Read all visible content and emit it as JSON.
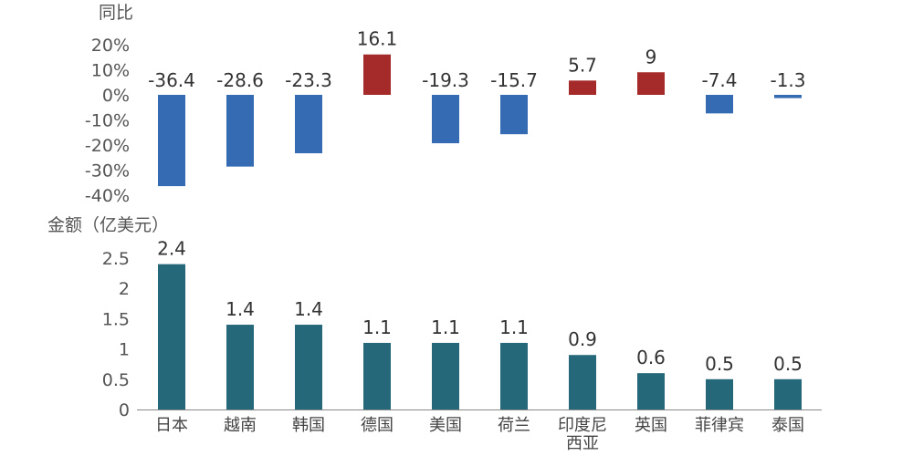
{
  "chart_data": [
    {
      "type": "bar",
      "ylabel": "同比",
      "categories": [
        "日本",
        "越南",
        "韩国",
        "德国",
        "美国",
        "荷兰",
        "印度尼西亚",
        "英国",
        "菲律宾",
        "泰国"
      ],
      "values": [
        -36.4,
        -28.6,
        -23.3,
        16.1,
        -19.3,
        -15.7,
        5.7,
        9,
        -7.4,
        -1.3
      ],
      "data_labels": [
        "-36.4",
        "-28.6",
        "-23.3",
        "16.1",
        "-19.3",
        "-15.7",
        "5.7",
        "9",
        "-7.4",
        "-1.3"
      ],
      "yticks": [
        "20%",
        "10%",
        "0%",
        "-10%",
        "-20%",
        "-30%",
        "-40%"
      ],
      "ytick_values": [
        20,
        10,
        0,
        -10,
        -20,
        -30,
        -40
      ],
      "ylim": [
        -40,
        20
      ],
      "grid": false,
      "colors": {
        "positive": "#A52A2A",
        "negative": "#356BB2"
      }
    },
    {
      "type": "bar",
      "ylabel": "金额（亿美元）",
      "categories": [
        "日本",
        "越南",
        "韩国",
        "德国",
        "美国",
        "荷兰",
        "印度尼西亚",
        "英国",
        "菲律宾",
        "泰国"
      ],
      "category_lines": [
        [
          "日本"
        ],
        [
          "越南"
        ],
        [
          "韩国"
        ],
        [
          "德国"
        ],
        [
          "美国"
        ],
        [
          "荷兰"
        ],
        [
          "印度尼",
          "西亚"
        ],
        [
          "英国"
        ],
        [
          "菲律宾"
        ],
        [
          "泰国"
        ]
      ],
      "values": [
        2.4,
        1.4,
        1.4,
        1.1,
        1.1,
        1.1,
        0.9,
        0.6,
        0.5,
        0.5
      ],
      "data_labels": [
        "2.4",
        "1.4",
        "1.4",
        "1.1",
        "1.1",
        "1.1",
        "0.9",
        "0.6",
        "0.5",
        "0.5"
      ],
      "yticks": [
        "2.5",
        "2",
        "1.5",
        "1",
        "0.5",
        "0"
      ],
      "ytick_values": [
        2.5,
        2,
        1.5,
        1,
        0.5,
        0
      ],
      "ylim": [
        0,
        2.5
      ],
      "grid": false,
      "colors": {
        "bar": "#25687A"
      }
    }
  ]
}
